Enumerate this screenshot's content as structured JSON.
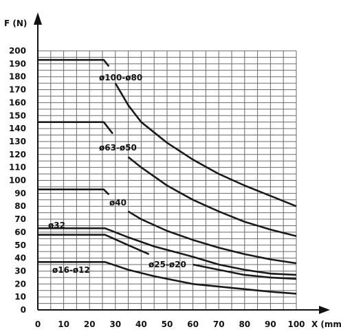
{
  "chart_data": {
    "type": "line",
    "xlabel": "X (mm)",
    "ylabel": "F (N)",
    "xlim": [
      0,
      100
    ],
    "ylim": [
      0,
      200
    ],
    "grid": true,
    "x_ticks": [
      "0",
      "10",
      "20",
      "30",
      "40",
      "50",
      "60",
      "70",
      "80",
      "90",
      "100"
    ],
    "y_ticks": [
      "0",
      "10",
      "20",
      "30",
      "40",
      "50",
      "60",
      "70",
      "80",
      "90",
      "100",
      "110",
      "120",
      "130",
      "140",
      "150",
      "160",
      "170",
      "180",
      "190",
      "200"
    ],
    "series": [
      {
        "name": "ø100-ø80",
        "segments": [
          [
            [
              0,
              193
            ],
            [
              25.5,
              193
            ],
            [
              27.5,
              188
            ]
          ],
          [
            [
              30,
              175
            ],
            [
              35,
              158
            ],
            [
              40,
              145
            ],
            [
              50,
              129
            ],
            [
              60,
              116
            ],
            [
              70,
              105
            ],
            [
              80,
              96
            ],
            [
              90,
              88
            ],
            [
              100,
              80
            ]
          ]
        ]
      },
      {
        "name": "ø63-ø50",
        "segments": [
          [
            [
              0,
              145
            ],
            [
              25.5,
              145
            ],
            [
              29,
              136
            ]
          ],
          [
            [
              35,
              118
            ],
            [
              40,
              110
            ],
            [
              50,
              96
            ],
            [
              60,
              85
            ],
            [
              70,
              76
            ],
            [
              80,
              68
            ],
            [
              90,
              62
            ],
            [
              100,
              57
            ]
          ]
        ]
      },
      {
        "name": "ø40",
        "segments": [
          [
            [
              0,
              93
            ],
            [
              25.5,
              93
            ],
            [
              27.5,
              89
            ]
          ],
          [
            [
              35,
              76
            ],
            [
              40,
              70
            ],
            [
              50,
              61
            ],
            [
              60,
              54
            ],
            [
              70,
              48
            ],
            [
              80,
              43
            ],
            [
              90,
              39
            ],
            [
              100,
              36
            ]
          ]
        ]
      },
      {
        "name": "ø32",
        "segments": [
          [
            [
              0,
              63
            ],
            [
              26,
              63
            ],
            [
              35,
              56
            ],
            [
              45,
              49
            ],
            [
              60,
              41
            ],
            [
              70,
              35
            ],
            [
              80,
              31
            ],
            [
              90,
              28
            ],
            [
              100,
              27
            ]
          ]
        ]
      },
      {
        "name": "ø25-ø20",
        "segments": [
          [
            [
              0,
              58
            ],
            [
              26,
              58
            ],
            [
              35,
              50
            ],
            [
              43,
              43
            ]
          ],
          [
            [
              60,
              35
            ],
            [
              70,
              31
            ],
            [
              80,
              27
            ],
            [
              90,
              25
            ],
            [
              100,
              24
            ]
          ]
        ]
      },
      {
        "name": "ø16-ø12",
        "segments": [
          [
            [
              0,
              37
            ],
            [
              26,
              37
            ],
            [
              35,
              31
            ],
            [
              45,
              26
            ],
            [
              60,
              20
            ],
            [
              70,
              18
            ],
            [
              80,
              16
            ],
            [
              90,
              14
            ],
            [
              100,
              12.5
            ]
          ]
        ]
      }
    ]
  }
}
